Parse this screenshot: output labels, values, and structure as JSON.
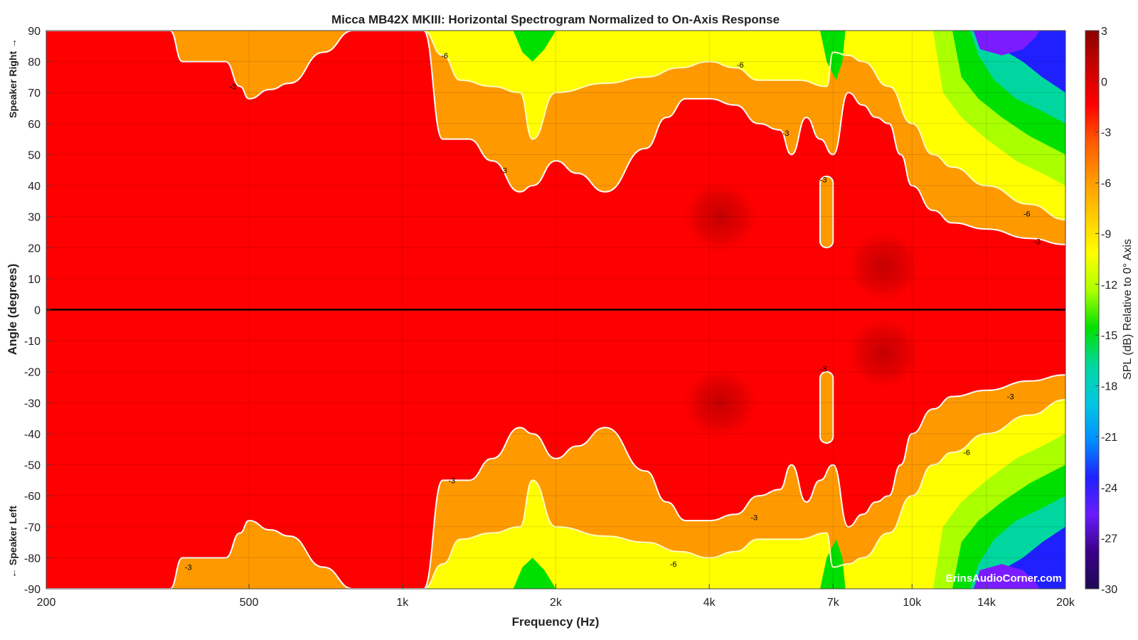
{
  "chart_data": {
    "type": "heatmap",
    "subtype": "filled-contour",
    "title": "Micca MB42X MKIII: Horizontal Spectrogram Normalized to On-Axis Response",
    "xlabel": "Frequency (Hz)",
    "ylabel": "Angle (degrees)",
    "ylabel_top": "Speaker Right →",
    "ylabel_bottom": "← Speaker Left",
    "colorbar_label": "SPL (dB) Relative to 0° Axis",
    "watermark": "ErinsAudioCorner.com",
    "x_scale": "log",
    "xlim": [
      200,
      20000
    ],
    "ylim": [
      -90,
      90
    ],
    "clim": [
      -30,
      3
    ],
    "grid": true,
    "x_ticks": [
      {
        "value": 200,
        "label": "200"
      },
      {
        "value": 500,
        "label": "500"
      },
      {
        "value": 1000,
        "label": "1k"
      },
      {
        "value": 2000,
        "label": "2k"
      },
      {
        "value": 4000,
        "label": "4k"
      },
      {
        "value": 7000,
        "label": "7k"
      },
      {
        "value": 10000,
        "label": "10k"
      },
      {
        "value": 14000,
        "label": "14k"
      },
      {
        "value": 20000,
        "label": "20k"
      }
    ],
    "y_ticks": [
      {
        "value": 90,
        "label": "90"
      },
      {
        "value": 80,
        "label": "80"
      },
      {
        "value": 70,
        "label": "70"
      },
      {
        "value": 60,
        "label": "60"
      },
      {
        "value": 50,
        "label": "50"
      },
      {
        "value": 40,
        "label": "40"
      },
      {
        "value": 30,
        "label": "30"
      },
      {
        "value": 20,
        "label": "20"
      },
      {
        "value": 10,
        "label": "10"
      },
      {
        "value": 0,
        "label": "0"
      },
      {
        "value": -10,
        "label": "-10"
      },
      {
        "value": -20,
        "label": "-20"
      },
      {
        "value": -30,
        "label": "-30"
      },
      {
        "value": -40,
        "label": "-40"
      },
      {
        "value": -50,
        "label": "-50"
      },
      {
        "value": -60,
        "label": "-60"
      },
      {
        "value": -70,
        "label": "-70"
      },
      {
        "value": -80,
        "label": "-80"
      },
      {
        "value": -90,
        "label": "-90"
      }
    ],
    "colorbar_ticks": [
      {
        "value": 3,
        "label": "3"
      },
      {
        "value": 0,
        "label": "0"
      },
      {
        "value": -3,
        "label": "-3"
      },
      {
        "value": -6,
        "label": "-6"
      },
      {
        "value": -9,
        "label": "-9"
      },
      {
        "value": -12,
        "label": "-12"
      },
      {
        "value": -15,
        "label": "-15"
      },
      {
        "value": -18,
        "label": "-18"
      },
      {
        "value": -21,
        "label": "-21"
      },
      {
        "value": -24,
        "label": "-24"
      },
      {
        "value": -27,
        "label": "-27"
      },
      {
        "value": -30,
        "label": "-30"
      }
    ],
    "levels": [
      {
        "min": 0,
        "max": 3,
        "color": "#c90000"
      },
      {
        "min": -3,
        "max": 0,
        "color": "#ff0000"
      },
      {
        "min": -6,
        "max": -3,
        "color": "#ff9900"
      },
      {
        "min": -9,
        "max": -6,
        "color": "#ffff00"
      },
      {
        "min": -12,
        "max": -9,
        "color": "#aaff00"
      },
      {
        "min": -15,
        "max": -12,
        "color": "#00e000"
      },
      {
        "min": -18,
        "max": -15,
        "color": "#00d7a0"
      },
      {
        "min": -21,
        "max": -18,
        "color": "#009fe0"
      },
      {
        "min": -24,
        "max": -21,
        "color": "#2020ff"
      },
      {
        "min": -27,
        "max": -24,
        "color": "#7a1cff"
      },
      {
        "min": -30,
        "max": -27,
        "color": "#3a0088"
      }
    ],
    "colorbar_gradient": [
      "#8b0000",
      "#cc0000",
      "#ff0000",
      "#ff5a00",
      "#ff9900",
      "#ffcc00",
      "#ffff00",
      "#aaff00",
      "#00e000",
      "#00d7a0",
      "#00c8e0",
      "#0090ff",
      "#2020ff",
      "#6a1cff",
      "#3a0088",
      "#1e0a55"
    ],
    "contour_lines": [
      {
        "level": -3,
        "color": "#ffffff"
      },
      {
        "level": -6,
        "color": "#ffffc0"
      }
    ],
    "boundary_minus3": {
      "freqs": [
        200,
        350,
        370,
        450,
        480,
        500,
        550,
        600,
        700,
        800,
        1100,
        1200,
        1350,
        1500,
        1700,
        1800,
        2000,
        2200,
        2500,
        3000,
        3300,
        3600,
        4000,
        4500,
        5000,
        5500,
        5800,
        6200,
        6600,
        7000,
        7500,
        8000,
        8500,
        9000,
        9500,
        10000,
        11000,
        12000,
        14000,
        17000,
        20000
      ],
      "angles": [
        90,
        90,
        80,
        80,
        72,
        68,
        71,
        73,
        83,
        90,
        90,
        55,
        55,
        48,
        38,
        40,
        48,
        44,
        38,
        52,
        62,
        68,
        68,
        66,
        60,
        58,
        50,
        62,
        55,
        50,
        70,
        66,
        62,
        60,
        50,
        40,
        32,
        28,
        26,
        23,
        21
      ]
    },
    "boundary_minus6": {
      "freqs": [
        1100,
        1200,
        1300,
        1500,
        1700,
        1800,
        2000,
        2500,
        3000,
        3500,
        4000,
        4500,
        5000,
        6000,
        6800,
        7000,
        7500,
        8000,
        9000,
        10000,
        11000,
        12000,
        14000,
        17000,
        20000
      ],
      "angles": [
        90,
        82,
        74,
        72,
        70,
        55,
        70,
        73,
        75,
        78,
        80,
        78,
        74,
        74,
        72,
        83,
        82,
        80,
        72,
        60,
        50,
        46,
        40,
        34,
        29
      ]
    },
    "minus3_islands": [
      {
        "freq_min": 6600,
        "freq_max": 7000,
        "angle_min": 20,
        "angle_max": 43
      },
      {
        "freq_min": 6600,
        "freq_max": 7000,
        "angle_min": -43,
        "angle_max": -20
      }
    ],
    "above_zero_hotspots": [
      {
        "freq": 4200,
        "angle": 30
      },
      {
        "freq": 4200,
        "angle": -30
      },
      {
        "freq": 8800,
        "angle": 14
      },
      {
        "freq": 8800,
        "angle": -14
      }
    ],
    "contour_labels": [
      {
        "text": "-3",
        "freq": 465,
        "angle": 72
      },
      {
        "text": "-6",
        "freq": 1210,
        "angle": 82
      },
      {
        "text": "-3",
        "freq": 1580,
        "angle": 45
      },
      {
        "text": "-6",
        "freq": 4600,
        "angle": 79
      },
      {
        "text": "-3",
        "freq": 5650,
        "angle": 57
      },
      {
        "text": "-3",
        "freq": 6700,
        "angle": 42
      },
      {
        "text": "-6",
        "freq": 16800,
        "angle": 31
      },
      {
        "text": "-3",
        "freq": 17600,
        "angle": 22
      },
      {
        "text": "-3",
        "freq": 6700,
        "angle": -19
      },
      {
        "text": "-3",
        "freq": 15600,
        "angle": -28
      },
      {
        "text": "-6",
        "freq": 12800,
        "angle": -46
      },
      {
        "text": "-3",
        "freq": 1250,
        "angle": -55
      },
      {
        "text": "-3",
        "freq": 4900,
        "angle": -67
      },
      {
        "text": "-6",
        "freq": 3400,
        "angle": -82
      },
      {
        "text": "-3",
        "freq": 380,
        "angle": -83
      }
    ]
  }
}
